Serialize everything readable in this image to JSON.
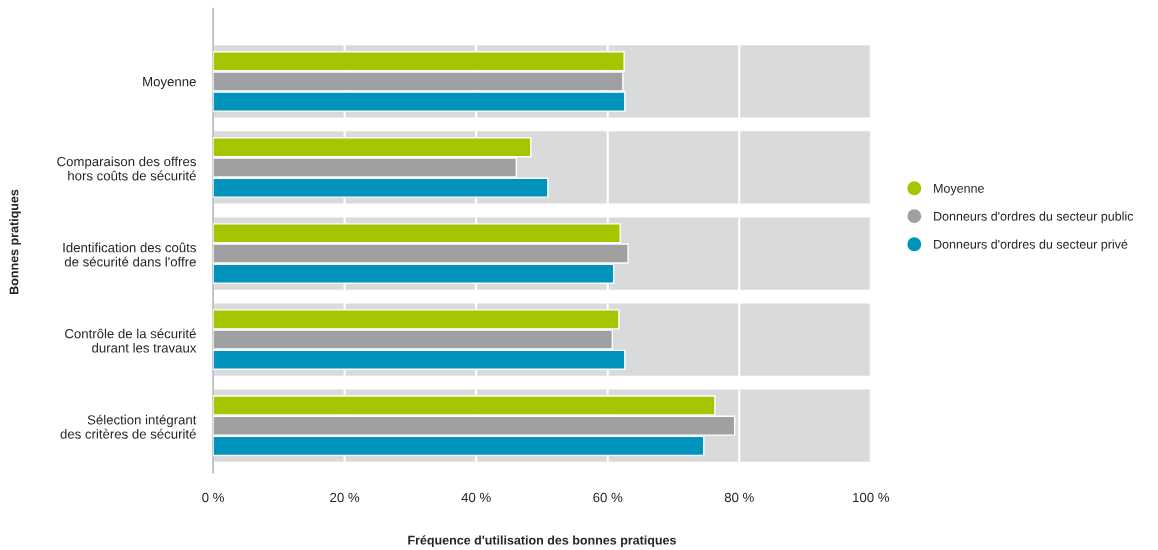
{
  "chart_data": {
    "type": "bar",
    "orientation": "horizontal",
    "xlabel": "Fréquence d'utilisation des bonnes pratiques",
    "ylabel": "Bonnes pratiques",
    "categories": [
      "Moyenne",
      "Comparaison des offres\nhors coûts de sécurité",
      "Identification des coûts\nde sécurité dans l'offre",
      "Contrôle de la sécurité\ndurant les travaux",
      "Sélection intégrant\ndes critères de sécurité"
    ],
    "series": [
      {
        "name": "Moyenne",
        "color": "#a5c500",
        "values": [
          62.5,
          48.3,
          61.9,
          61.7,
          76.3
        ]
      },
      {
        "name": "Donneurs d'ordres du secteur public",
        "color": "#9fa0a2",
        "values": [
          62.3,
          46.1,
          63.1,
          60.7,
          79.3
        ]
      },
      {
        "name": "Donneurs d'ordres du secteur privé",
        "color": "#0093bb",
        "values": [
          62.6,
          50.9,
          60.9,
          62.6,
          74.6
        ]
      }
    ],
    "xlim": [
      0,
      100
    ],
    "xticks": [
      {
        "value": 0,
        "label": "0 %"
      },
      {
        "value": 20,
        "label": "20 %"
      },
      {
        "value": 40,
        "label": "40 %"
      },
      {
        "value": 60,
        "label": "60 %"
      },
      {
        "value": 80,
        "label": "80 %"
      },
      {
        "value": 100,
        "label": "100 %"
      }
    ],
    "bands": [
      {
        "axis": "x",
        "from": 0,
        "to": 100,
        "color": "#d9dadc"
      },
      {
        "axis": "x",
        "from": 0,
        "to": 100,
        "color": "#d9dadc"
      },
      {
        "axis": "x",
        "from": 0,
        "to": 100,
        "color": "#d9dadc"
      },
      {
        "axis": "x",
        "from": 0,
        "to": 100,
        "color": "#d9dadc"
      },
      {
        "axis": "x",
        "from": 0,
        "to": 100,
        "color": "#d9dadc"
      }
    ],
    "grid": "x",
    "legend": "right"
  }
}
